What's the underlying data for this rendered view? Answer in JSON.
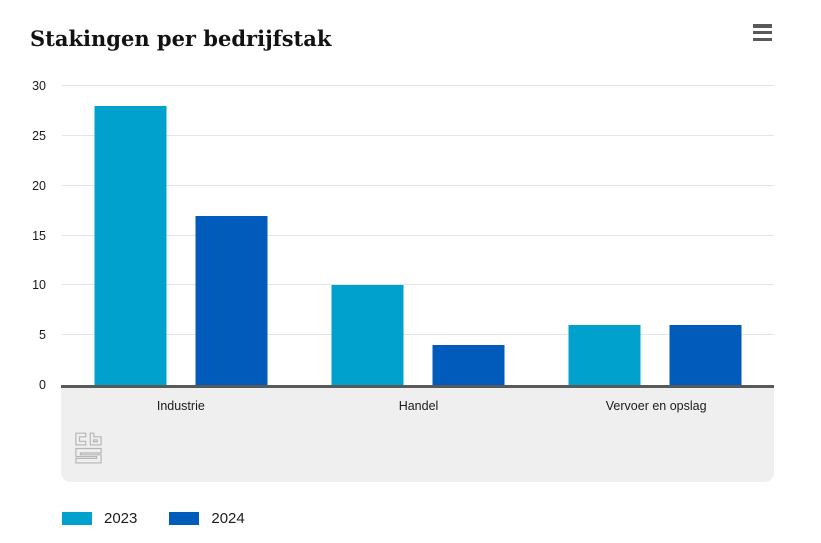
{
  "header": {
    "title": "Stakingen per bedrijfstak",
    "menu_icon": "hamburger-menu-icon"
  },
  "logo_icon": "cbs-logo",
  "colors": {
    "series_2023": "#00a1cd",
    "series_2024": "#005bbb",
    "baseline": "#58595b",
    "gridline": "#e4e4e4",
    "footer_bg": "#efefef"
  },
  "chart_data": {
    "type": "bar",
    "title": "Stakingen per bedrijfstak",
    "categories": [
      "Industrie",
      "Handel",
      "Vervoer en opslag"
    ],
    "series": [
      {
        "name": "2023",
        "color": "#00a1cd",
        "values": [
          28,
          10,
          6
        ]
      },
      {
        "name": "2024",
        "color": "#005bbb",
        "values": [
          17,
          4,
          6
        ]
      }
    ],
    "xlabel": "",
    "ylabel": "",
    "ylim": [
      0,
      30
    ],
    "yticks": [
      0,
      5,
      10,
      15,
      20,
      25,
      30
    ],
    "grid": true,
    "legend_position": "bottom"
  }
}
